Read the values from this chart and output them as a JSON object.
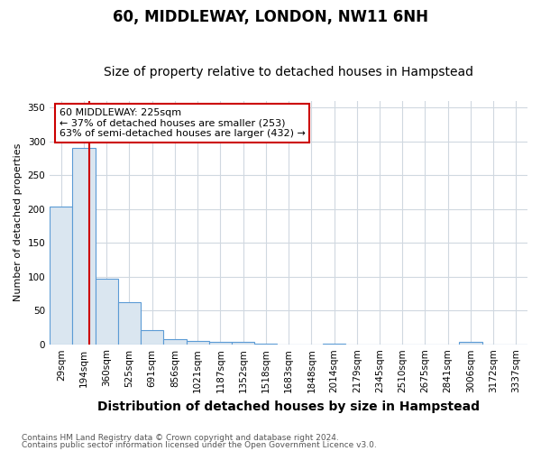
{
  "title": "60, MIDDLEWAY, LONDON, NW11 6NH",
  "subtitle": "Size of property relative to detached houses in Hampstead",
  "xlabel": "Distribution of detached houses by size in Hampstead",
  "ylabel": "Number of detached properties",
  "categories": [
    "29sqm",
    "194sqm",
    "360sqm",
    "525sqm",
    "691sqm",
    "856sqm",
    "1021sqm",
    "1187sqm",
    "1352sqm",
    "1518sqm",
    "1683sqm",
    "1848sqm",
    "2014sqm",
    "2179sqm",
    "2345sqm",
    "2510sqm",
    "2675sqm",
    "2841sqm",
    "3006sqm",
    "3172sqm",
    "3337sqm"
  ],
  "values": [
    204,
    290,
    97,
    62,
    21,
    7,
    5,
    4,
    4,
    1,
    0,
    0,
    1,
    0,
    0,
    0,
    0,
    0,
    3,
    0,
    0
  ],
  "bar_color": "#dae6f0",
  "bar_edge_color": "#5b9bd5",
  "red_line_x": 1.25,
  "ylim": [
    0,
    360
  ],
  "yticks": [
    0,
    50,
    100,
    150,
    200,
    250,
    300,
    350
  ],
  "annotation_text": "60 MIDDLEWAY: 225sqm\n← 37% of detached houses are smaller (253)\n63% of semi-detached houses are larger (432) →",
  "annotation_box_color": "#ffffff",
  "annotation_box_edge": "#cc0000",
  "footer1": "Contains HM Land Registry data © Crown copyright and database right 2024.",
  "footer2": "Contains public sector information licensed under the Open Government Licence v3.0.",
  "background_color": "#ffffff",
  "plot_bg_color": "#ffffff",
  "grid_color": "#d0d8e0",
  "title_fontsize": 12,
  "subtitle_fontsize": 10,
  "xlabel_fontsize": 10,
  "ylabel_fontsize": 8,
  "tick_fontsize": 7.5
}
